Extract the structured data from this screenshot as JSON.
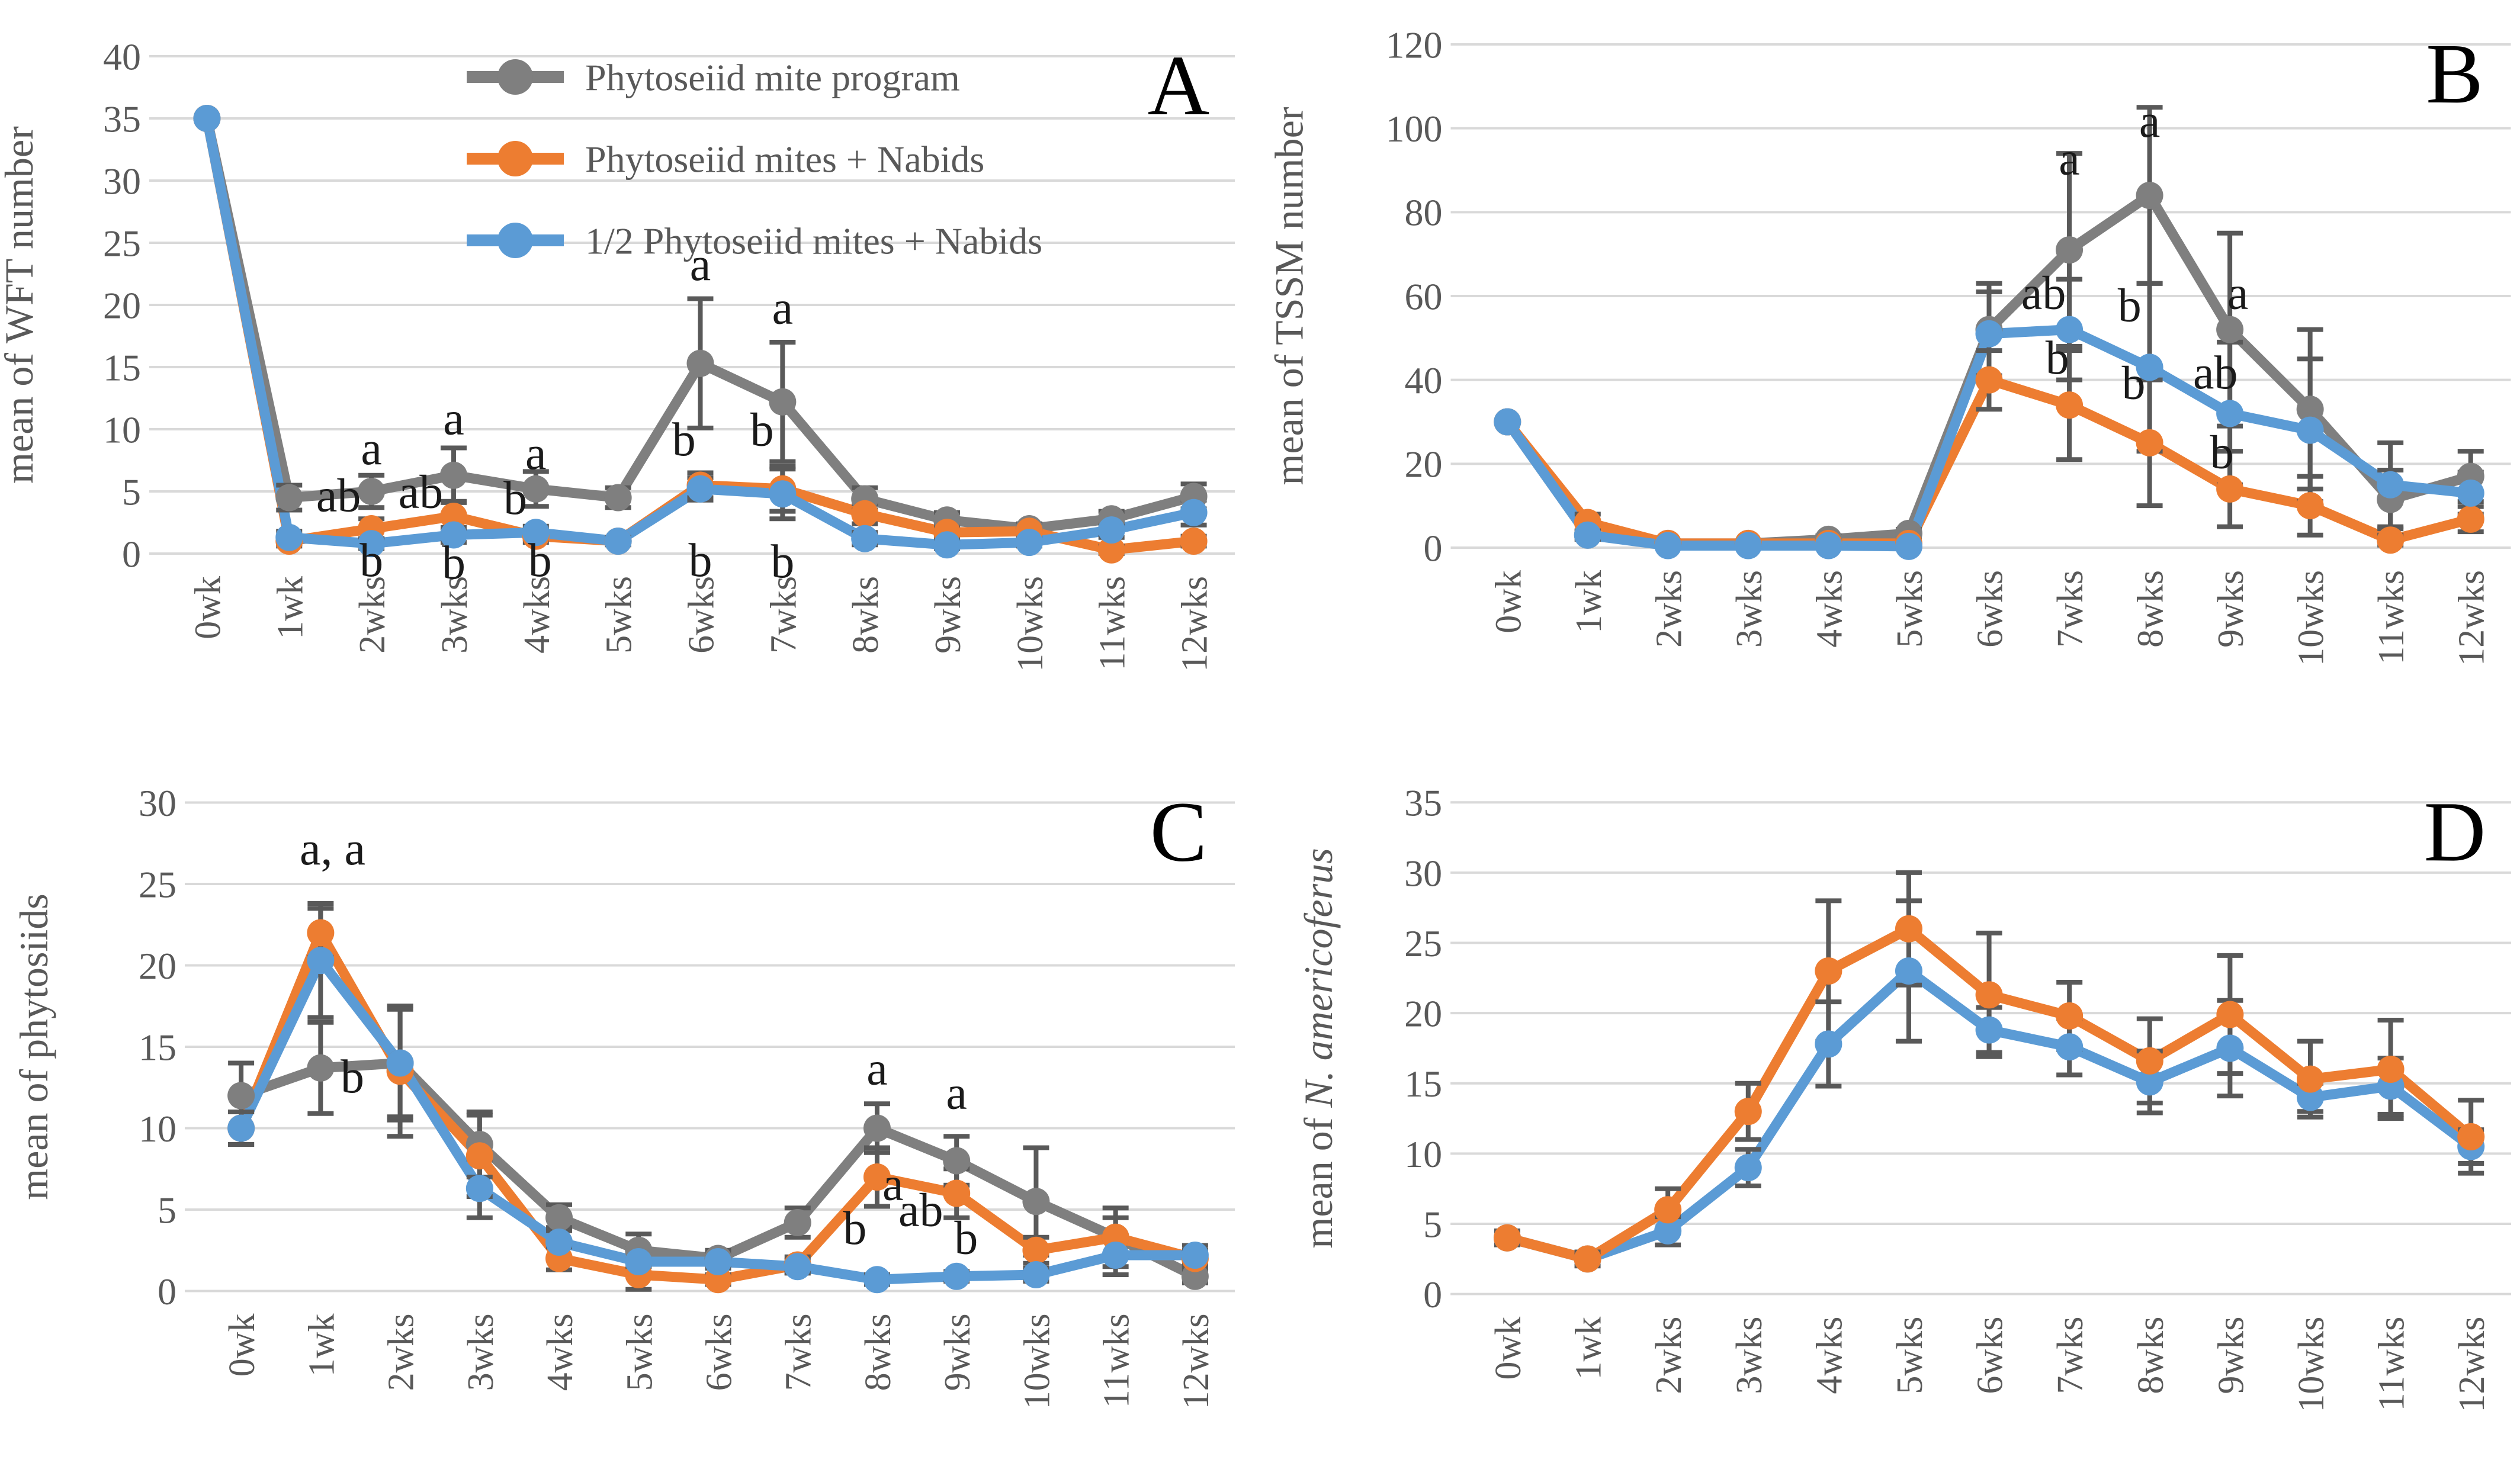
{
  "page": {
    "background": "#ffffff"
  },
  "colors": {
    "gray_series": "#7F7F7F",
    "orange_series": "#ED7D31",
    "blue_series": "#5B9BD5",
    "error_bar": "#595959",
    "gridline": "#D9D9D9",
    "axis_text": "#595959",
    "annotation": "#1a1a1a",
    "panel_letter": "#000000"
  },
  "legend": {
    "position": "top-left-inside-panel-A",
    "items": [
      {
        "label": "Phytoseiid mite program",
        "color": "#7F7F7F",
        "marker": "circle-on-line"
      },
      {
        "label": "Phytoseiid mites + Nabids",
        "color": "#ED7D31",
        "marker": "circle-on-line"
      },
      {
        "label": "1/2 Phytoseiid mites + Nabids",
        "color": "#5B9BD5",
        "marker": "circle-on-line"
      }
    ]
  },
  "chart_data": [
    {
      "type": "line",
      "panel": "A",
      "ylabel": "mean of WFT number",
      "ylim": [
        0,
        40
      ],
      "ytick_step": 5,
      "grid": true,
      "x_labels_rotation": -90,
      "error_bars": true,
      "show_legend": true,
      "categories": [
        "0wk",
        "1wk",
        "2wks",
        "3wks",
        "4wks",
        "5wks",
        "6wks",
        "7wks",
        "8wks",
        "9wks",
        "10wks",
        "11wks",
        "12wks"
      ],
      "series": [
        {
          "key": "phytoseiid-mite-program",
          "name": "Phytoseiid mite program",
          "color": "#7F7F7F",
          "values": [
            35,
            4.5,
            5,
            6.3,
            5.2,
            4.5,
            15.3,
            12.2,
            4.4,
            2.7,
            2,
            2.8,
            4.6
          ],
          "errors": [
            0,
            1,
            1.3,
            2.2,
            1.4,
            0.8,
            5.2,
            4.8,
            0.9,
            0.6,
            0.4,
            0.6,
            1
          ]
        },
        {
          "key": "phytoseiid-mites-nabids",
          "name": "Phytoseiid mites + Nabids",
          "color": "#ED7D31",
          "values": [
            35,
            1,
            2,
            3,
            1.4,
            1,
            5.5,
            5.2,
            3.2,
            1.7,
            1.8,
            0.3,
            1
          ],
          "errors": [
            0,
            0.4,
            0.8,
            1.2,
            0.5,
            0.3,
            1,
            1.8,
            0.8,
            0.5,
            0.4,
            0.3,
            0.4
          ]
        },
        {
          "key": "half-phytoseiid-mites-nabids",
          "name": "1/2 Phytoseiid mites + Nabids",
          "color": "#5B9BD5",
          "values": [
            35,
            1.3,
            0.8,
            1.5,
            1.7,
            1,
            5.2,
            4.8,
            1.2,
            0.7,
            0.9,
            1.9,
            3.3
          ],
          "errors": [
            0,
            0.5,
            0.4,
            0.6,
            0.5,
            0.3,
            0.9,
            2,
            0.5,
            0.3,
            0.3,
            0.6,
            1
          ]
        }
      ],
      "annotations": [
        {
          "x": 2,
          "y": 7.2,
          "text": "a"
        },
        {
          "x": 1.6,
          "y": 3.4,
          "text": "ab"
        },
        {
          "x": 2,
          "y": -1.8,
          "text": "b"
        },
        {
          "x": 3,
          "y": 9.6,
          "text": "a"
        },
        {
          "x": 2.6,
          "y": 3.7,
          "text": "ab"
        },
        {
          "x": 3,
          "y": -2,
          "text": "b"
        },
        {
          "x": 4,
          "y": 6.8,
          "text": "a"
        },
        {
          "x": 3.75,
          "y": 3.2,
          "text": "b"
        },
        {
          "x": 4.05,
          "y": -1.8,
          "text": "b"
        },
        {
          "x": 6,
          "y": 22,
          "text": "a"
        },
        {
          "x": 5.8,
          "y": 7.9,
          "text": "b"
        },
        {
          "x": 6,
          "y": -1.8,
          "text": "b"
        },
        {
          "x": 7,
          "y": 18.5,
          "text": "a"
        },
        {
          "x": 6.75,
          "y": 8.7,
          "text": "b"
        },
        {
          "x": 7,
          "y": -1.9,
          "text": "b"
        }
      ]
    },
    {
      "type": "line",
      "panel": "B",
      "ylabel": "mean of TSSM number",
      "ylim": [
        0,
        120
      ],
      "ytick_step": 20,
      "grid": true,
      "x_labels_rotation": -90,
      "error_bars": true,
      "show_legend": false,
      "categories": [
        "0wk",
        "1wk",
        "2wks",
        "3wks",
        "4wks",
        "5wks",
        "6wks",
        "7wks",
        "8wks",
        "9wks",
        "10wks",
        "11wks",
        "12wks"
      ],
      "series": [
        {
          "key": "phytoseiid-mite-program",
          "name": "Phytoseiid mite program",
          "color": "#7F7F7F",
          "values": [
            30,
            3,
            1,
            1,
            2,
            3.4,
            52,
            71,
            84,
            52,
            33,
            11.5,
            17
          ],
          "errors": [
            0,
            1,
            0.5,
            0.5,
            0.8,
            1,
            11,
            23,
            21,
            23,
            19,
            7,
            6
          ]
        },
        {
          "key": "phytoseiid-mites-nabids",
          "name": "Phytoseiid mites + Nabids",
          "color": "#ED7D31",
          "values": [
            30,
            6,
            1,
            1,
            1,
            1,
            40,
            34,
            25,
            14,
            10,
            1.8,
            6.8
          ],
          "errors": [
            0,
            2,
            0.4,
            0.4,
            0.4,
            0.4,
            7,
            13,
            15,
            9,
            7,
            1.2,
            3
          ]
        },
        {
          "key": "half-phytoseiid-mites-nabids",
          "name": "1/2 Phytoseiid mites + Nabids",
          "color": "#5B9BD5",
          "values": [
            30,
            3,
            0.5,
            0.5,
            0.5,
            0.3,
            51,
            52,
            43,
            32,
            28,
            15,
            13
          ],
          "errors": [
            0,
            1,
            0.3,
            0.3,
            0.3,
            0.3,
            10,
            12,
            20,
            17,
            17,
            10,
            5
          ]
        }
      ],
      "annotations": [
        {
          "x": 7,
          "y": 89,
          "text": "a"
        },
        {
          "x": 6.68,
          "y": 57,
          "text": "ab"
        },
        {
          "x": 6.85,
          "y": 41.5,
          "text": "b"
        },
        {
          "x": 8,
          "y": 98,
          "text": "a"
        },
        {
          "x": 7.75,
          "y": 54,
          "text": "b"
        },
        {
          "x": 7.8,
          "y": 35.5,
          "text": "b"
        },
        {
          "x": 9.1,
          "y": 57,
          "text": "a"
        },
        {
          "x": 8.82,
          "y": 38,
          "text": "ab"
        },
        {
          "x": 8.9,
          "y": 19,
          "text": "b"
        }
      ]
    },
    {
      "type": "line",
      "panel": "C",
      "ylabel": "mean of phytosiids",
      "ylim": [
        0,
        30
      ],
      "ytick_step": 5,
      "grid": true,
      "x_labels_rotation": -90,
      "error_bars": true,
      "show_legend": false,
      "categories": [
        "0wk",
        "1wk",
        "2wks",
        "3wks",
        "4wks",
        "5wks",
        "6wks",
        "7wks",
        "8wks",
        "9wks",
        "10wks",
        "11wks",
        "12wks"
      ],
      "series": [
        {
          "key": "phytoseiid-mite-program",
          "name": "Phytoseiid mite program",
          "color": "#7F7F7F",
          "values": [
            12,
            13.7,
            14,
            9,
            4.5,
            2.5,
            2,
            4.2,
            10,
            8,
            5.5,
            3.3,
            0.9
          ],
          "errors": [
            2,
            2.8,
            3.5,
            2,
            0.8,
            1,
            0.5,
            0.9,
            1.5,
            1.5,
            3.3,
            1.8,
            0.4
          ]
        },
        {
          "key": "phytoseiid-mites-nabids",
          "name": "Phytoseiid mites + Nabids",
          "color": "#ED7D31",
          "values": [
            10,
            22,
            13.5,
            8.3,
            2,
            1,
            0.7,
            1.6,
            7,
            6,
            2.5,
            3.3,
            2
          ],
          "errors": [
            1,
            1.5,
            4,
            2.5,
            0.7,
            0.9,
            0.3,
            0.5,
            1.8,
            1.5,
            0.8,
            1.2,
            0.5
          ]
        },
        {
          "key": "half-phytoseiid-mites-nabids",
          "name": "1/2 Phytoseiid mites + Nabids",
          "color": "#5B9BD5",
          "values": [
            10,
            20.3,
            14,
            6.3,
            3,
            1.8,
            1.8,
            1.5,
            0.7,
            0.9,
            1,
            2.2,
            2.2
          ],
          "errors": [
            1,
            3.5,
            3.3,
            1.8,
            0.9,
            0.8,
            0.4,
            0.4,
            0.3,
            0.3,
            0.4,
            1.2,
            0.6
          ]
        }
      ],
      "annotations": [
        {
          "x": 1.15,
          "y": 26.2,
          "text": "a, a"
        },
        {
          "x": 1.4,
          "y": 12.2,
          "text": "b"
        },
        {
          "x": 8,
          "y": 12.7,
          "text": "a"
        },
        {
          "x": 8.2,
          "y": 5.6,
          "text": "a"
        },
        {
          "x": 8.55,
          "y": 4,
          "text": "ab"
        },
        {
          "x": 7.72,
          "y": 2.9,
          "text": "b"
        },
        {
          "x": 9,
          "y": 11.2,
          "text": "a"
        },
        {
          "x": 9.12,
          "y": 2.3,
          "text": "b"
        }
      ]
    },
    {
      "type": "line",
      "panel": "D",
      "ylabel_parts": {
        "normal": "mean of ",
        "italic": "N. americoferus"
      },
      "ylim": [
        0,
        35
      ],
      "ytick_step": 5,
      "grid": true,
      "x_labels_rotation": -90,
      "error_bars": true,
      "show_legend": false,
      "categories": [
        "0wk",
        "1wk",
        "2wks",
        "3wks",
        "4wks",
        "5wks",
        "6wks",
        "7wks",
        "8wks",
        "9wks",
        "10wks",
        "11wks",
        "12wks"
      ],
      "series": [
        {
          "key": "half-phytoseiid-mites-nabids",
          "name": "1/2 Phytoseiid mites + Nabids",
          "color": "#5B9BD5",
          "values": [
            4,
            2.5,
            4.5,
            9,
            17.8,
            23,
            18.8,
            17.6,
            15.1,
            17.5,
            14,
            14.8,
            10.5
          ],
          "errors": [
            0,
            0,
            1,
            1.3,
            3,
            5,
            1.6,
            2,
            2.2,
            3.4,
            1,
            2,
            1.2
          ]
        },
        {
          "key": "phytoseiid-mites-nabids",
          "name": "Phytoseiid mites + Nabids",
          "color": "#ED7D31",
          "values": [
            4,
            2.5,
            6,
            13,
            23,
            26,
            21.3,
            19.8,
            16.6,
            19.9,
            15.3,
            16,
            11.2
          ],
          "errors": [
            0.5,
            0.5,
            1.5,
            2,
            5,
            4,
            4.4,
            2.4,
            3,
            4.2,
            2.7,
            3.5,
            2.6
          ]
        }
      ],
      "annotations": []
    }
  ]
}
